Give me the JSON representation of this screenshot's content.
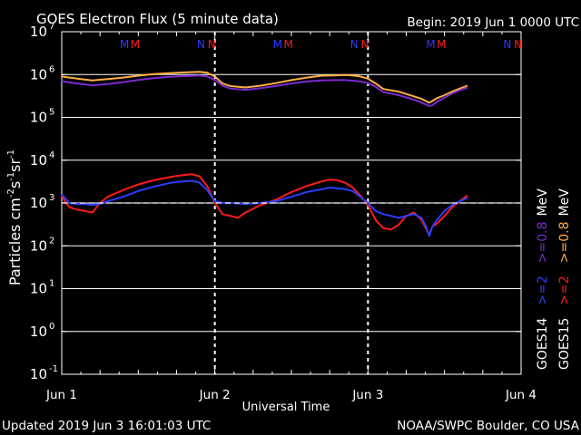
{
  "header": {
    "title": "GOES Electron Flux (5 minute data)",
    "begin": "Begin: 2019 Jun 1 0000 UTC"
  },
  "footer": {
    "updated": "Updated 2019 Jun  3 16:01:03 UTC",
    "credit": "NOAA/SWPC Boulder, CO USA"
  },
  "colors": {
    "background": "#000000",
    "grid": "#ffffff",
    "goes14_high": "#2b3cff",
    "goes15_high": "#ff1a1a",
    "goes14_low": "#7a2bd0",
    "goes15_low": "#ffae42",
    "threshold": "#ffffff"
  },
  "chart_data": {
    "type": "line",
    "title": "GOES Electron Flux (5 minute data)",
    "xlabel": "Universal Time",
    "ylabel": "Particles cm-2s-1sr-1",
    "y_scale": "log",
    "ylim_exp": [
      -1,
      7
    ],
    "y_tick_exponents": [
      -1,
      0,
      1,
      2,
      3,
      4,
      5,
      6,
      7
    ],
    "x_ticks": [
      "Jun 1",
      "Jun 2",
      "Jun 3",
      "Jun 4"
    ],
    "xlim_days": [
      0,
      3
    ],
    "grid": true,
    "threshold": 1000,
    "marker_rows": [
      {
        "label": "M",
        "color": "#2b3cff",
        "x": [
          0.41,
          1.41,
          2.41
        ]
      },
      {
        "label": "M",
        "color": "#ff1a1a",
        "x": [
          0.48,
          1.48,
          2.48
        ]
      },
      {
        "label": "N",
        "color": "#2b3cff",
        "x": [
          0.91,
          1.91,
          2.91
        ]
      },
      {
        "label": "N",
        "color": "#ff1a1a",
        "x": [
          0.98,
          1.98,
          2.98
        ]
      }
    ],
    "legend": [
      {
        "satellite": "GOES14",
        "channel": ">=2",
        "unit": "",
        "color": "#2b3cff"
      },
      {
        "satellite": "GOES15",
        "channel": ">=2",
        "unit": "",
        "color": "#ff1a1a"
      },
      {
        "satellite": "GOES14",
        "channel": ">=0.8",
        "unit": "MeV",
        "color": "#7a2bd0"
      },
      {
        "satellite": "GOES15",
        "channel": ">=0.8",
        "unit": "MeV",
        "color": "#ffae42"
      }
    ],
    "series": [
      {
        "satellite": "GOES15",
        "channel": ">=0.8 MeV",
        "color": "#ffae42",
        "x": [
          0.0,
          0.1,
          0.2,
          0.3,
          0.4,
          0.5,
          0.6,
          0.7,
          0.8,
          0.9,
          0.95,
          1.0,
          1.05,
          1.1,
          1.2,
          1.3,
          1.4,
          1.5,
          1.6,
          1.7,
          1.8,
          1.85,
          1.9,
          1.95,
          2.0,
          2.05,
          2.1,
          2.2,
          2.3,
          2.35,
          2.4,
          2.42,
          2.45,
          2.5,
          2.55,
          2.6,
          2.65
        ],
        "y": [
          900000.0,
          800000.0,
          730000.0,
          780000.0,
          850000.0,
          940000.0,
          1020000.0,
          1080000.0,
          1120000.0,
          1160000.0,
          1100000.0,
          900000.0,
          620000.0,
          540000.0,
          500000.0,
          550000.0,
          630000.0,
          740000.0,
          850000.0,
          940000.0,
          960000.0,
          980000.0,
          950000.0,
          900000.0,
          800000.0,
          620000.0,
          460000.0,
          400000.0,
          310000.0,
          270000.0,
          220000.0,
          240000.0,
          280000.0,
          330000.0,
          400000.0,
          470000.0,
          550000.0
        ]
      },
      {
        "satellite": "GOES14",
        "channel": ">=0.8 MeV",
        "color": "#7a2bd0",
        "x": [
          0.0,
          0.1,
          0.2,
          0.3,
          0.4,
          0.5,
          0.6,
          0.7,
          0.8,
          0.9,
          0.95,
          1.0,
          1.05,
          1.1,
          1.2,
          1.3,
          1.4,
          1.5,
          1.6,
          1.7,
          1.8,
          1.85,
          1.9,
          1.95,
          2.0,
          2.05,
          2.1,
          2.2,
          2.3,
          2.35,
          2.4,
          2.42,
          2.45,
          2.5,
          2.55,
          2.6,
          2.65
        ],
        "y": [
          700000.0,
          620000.0,
          560000.0,
          600000.0,
          660000.0,
          750000.0,
          820000.0,
          880000.0,
          920000.0,
          950000.0,
          900000.0,
          750000.0,
          550000.0,
          470000.0,
          440000.0,
          480000.0,
          540000.0,
          620000.0,
          690000.0,
          730000.0,
          740000.0,
          740000.0,
          720000.0,
          690000.0,
          630000.0,
          520000.0,
          390000.0,
          330000.0,
          260000.0,
          220000.0,
          185000.0,
          190000.0,
          230000.0,
          290000.0,
          360000.0,
          430000.0,
          500000.0
        ]
      },
      {
        "satellite": "GOES15",
        "channel": ">=2 MeV",
        "color": "#ff1a1a",
        "x": [
          0.0,
          0.02,
          0.05,
          0.1,
          0.15,
          0.2,
          0.25,
          0.3,
          0.4,
          0.5,
          0.6,
          0.7,
          0.75,
          0.8,
          0.85,
          0.9,
          0.95,
          1.0,
          1.05,
          1.1,
          1.15,
          1.2,
          1.3,
          1.4,
          1.5,
          1.6,
          1.7,
          1.75,
          1.8,
          1.85,
          1.9,
          1.95,
          2.0,
          2.05,
          2.1,
          2.15,
          2.2,
          2.25,
          2.3,
          2.35,
          2.38,
          2.4,
          2.42,
          2.45,
          2.5,
          2.55,
          2.6,
          2.65
        ],
        "y": [
          1500,
          1100,
          800,
          700,
          650,
          600,
          1000,
          1400,
          2000,
          2700,
          3400,
          4000,
          4300,
          4500,
          4700,
          4200,
          2500,
          1000,
          550,
          500,
          450,
          600,
          900,
          1200,
          1800,
          2500,
          3200,
          3500,
          3400,
          3000,
          2300,
          1500,
          900,
          400,
          260,
          240,
          310,
          500,
          600,
          400,
          250,
          180,
          280,
          330,
          500,
          800,
          1100,
          1500
        ]
      },
      {
        "satellite": "GOES14",
        "channel": ">=2 MeV",
        "color": "#2b3cff",
        "x": [
          0.0,
          0.05,
          0.1,
          0.15,
          0.2,
          0.25,
          0.3,
          0.4,
          0.5,
          0.6,
          0.7,
          0.75,
          0.8,
          0.85,
          0.9,
          0.95,
          1.0,
          1.05,
          1.1,
          1.2,
          1.3,
          1.4,
          1.5,
          1.6,
          1.7,
          1.75,
          1.8,
          1.85,
          1.9,
          1.95,
          2.0,
          2.05,
          2.1,
          2.15,
          2.2,
          2.25,
          2.3,
          2.35,
          2.38,
          2.4,
          2.42,
          2.45,
          2.5,
          2.55,
          2.6,
          2.65
        ],
        "y": [
          1600,
          1000,
          950,
          950,
          900,
          950,
          1100,
          1400,
          1900,
          2400,
          2900,
          3100,
          3200,
          3300,
          3000,
          2000,
          1100,
          1000,
          1000,
          950,
          1000,
          1100,
          1400,
          1800,
          2100,
          2300,
          2200,
          2100,
          1900,
          1400,
          1000,
          650,
          550,
          500,
          450,
          500,
          550,
          450,
          280,
          170,
          280,
          400,
          650,
          900,
          1100,
          1300
        ]
      }
    ]
  }
}
